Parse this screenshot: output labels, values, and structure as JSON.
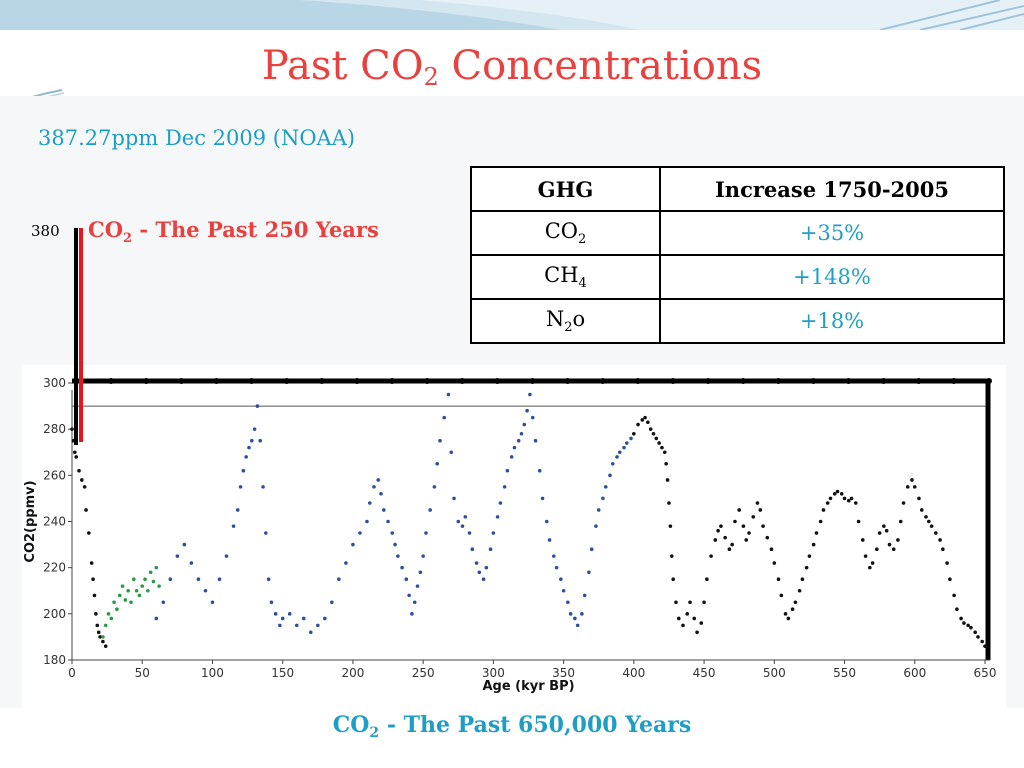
{
  "slide": {
    "title_main": "Past CO",
    "title_sub": "2",
    "title_rest": " Concentrations",
    "subtitle": "387.27ppm Dec 2009 (NOAA)",
    "caption_pre": "CO",
    "caption_sub": "2",
    "caption_post": " - The Past 650,000 Years",
    "small_chart_pre": "CO",
    "small_chart_sub": "2",
    "small_chart_post": " - The Past 250 Years",
    "small_chart_tick": "380"
  },
  "table": {
    "headers": [
      "GHG",
      "Increase 1750-2005"
    ],
    "rows": [
      {
        "gas": "CO",
        "gas_sub": "2",
        "increase": "+35%"
      },
      {
        "gas": "CH",
        "gas_sub": "4",
        "increase": "+148%"
      },
      {
        "gas": "N",
        "gas_sub": "2",
        "gas_post": "o",
        "increase": "+18%"
      }
    ]
  },
  "colors": {
    "title": "#e8413f",
    "accent": "#1e9ec4",
    "series_black": "#111111",
    "series_blue": "#2f4f9e",
    "series_green": "#2a9a4a",
    "recent_line": "#e8141e"
  },
  "chart_data": {
    "type": "scatter",
    "title": "",
    "xlabel": "Age (kyr BP)",
    "ylabel": "CO2(ppmv)",
    "xlim": [
      0,
      650
    ],
    "ylim": [
      180,
      300
    ],
    "xticks": [
      "0",
      "50",
      "100",
      "150",
      "200",
      "250",
      "300",
      "350",
      "400",
      "450",
      "500",
      "550",
      "600",
      "650"
    ],
    "yticks": [
      "180",
      "200",
      "220",
      "240",
      "260",
      "280",
      "300"
    ],
    "reference_line_y": 290,
    "grid": false,
    "series": [
      {
        "color": "black",
        "x": [
          0,
          1,
          2,
          3,
          5,
          7,
          9,
          10,
          12,
          14,
          15,
          16,
          17,
          18,
          19,
          20,
          22,
          24,
          400,
          403,
          406,
          408,
          410,
          412,
          414,
          416,
          418,
          420,
          422,
          423,
          424,
          425,
          426,
          427,
          428,
          430,
          432,
          435,
          438,
          440,
          443,
          445,
          448,
          450,
          452,
          455,
          458,
          460,
          462,
          465,
          468,
          470,
          472,
          475,
          478,
          480,
          482,
          485,
          488,
          490,
          492,
          495,
          498,
          500,
          503,
          505,
          508,
          510,
          513,
          515,
          518,
          520,
          523,
          525,
          528,
          530,
          533,
          535,
          538,
          540,
          543,
          545,
          548,
          550,
          553,
          555,
          558,
          560,
          563,
          565,
          568,
          570,
          573,
          575,
          578,
          580,
          582,
          585,
          588,
          590,
          592,
          595,
          598,
          600,
          603,
          605,
          608,
          610,
          612,
          615,
          618,
          620,
          623,
          625,
          628,
          630,
          633,
          635,
          638,
          640,
          643,
          645,
          648,
          650
        ],
        "y": [
          280,
          275,
          270,
          268,
          262,
          258,
          255,
          245,
          235,
          222,
          215,
          208,
          200,
          195,
          192,
          190,
          188,
          186,
          278,
          282,
          284,
          285,
          283,
          280,
          278,
          276,
          274,
          272,
          270,
          265,
          258,
          248,
          238,
          225,
          215,
          205,
          198,
          195,
          200,
          205,
          198,
          192,
          196,
          205,
          215,
          225,
          232,
          236,
          238,
          233,
          228,
          230,
          240,
          245,
          238,
          232,
          235,
          242,
          248,
          245,
          238,
          233,
          228,
          222,
          215,
          208,
          200,
          198,
          202,
          205,
          210,
          215,
          220,
          225,
          230,
          235,
          240,
          245,
          248,
          250,
          252,
          253,
          252,
          250,
          249,
          250,
          248,
          240,
          232,
          225,
          220,
          222,
          228,
          235,
          238,
          236,
          230,
          228,
          232,
          240,
          248,
          255,
          258,
          255,
          250,
          245,
          242,
          240,
          238,
          235,
          232,
          228,
          222,
          215,
          208,
          202,
          198,
          196,
          195,
          194,
          192,
          190,
          188,
          186
        ]
      },
      {
        "color": "blue",
        "x": [
          60,
          65,
          70,
          75,
          80,
          85,
          90,
          95,
          100,
          105,
          110,
          115,
          118,
          120,
          122,
          124,
          126,
          128,
          130,
          132,
          134,
          136,
          138,
          140,
          142,
          145,
          148,
          150,
          155,
          160,
          165,
          170,
          175,
          180,
          185,
          190,
          195,
          200,
          205,
          210,
          212,
          215,
          218,
          220,
          222,
          225,
          228,
          230,
          232,
          235,
          238,
          240,
          242,
          244,
          246,
          248,
          250,
          252,
          255,
          258,
          260,
          262,
          265,
          268,
          270,
          272,
          275,
          278,
          280,
          283,
          285,
          288,
          290,
          293,
          295,
          298,
          300,
          303,
          305,
          308,
          310,
          313,
          315,
          318,
          320,
          322,
          324,
          326,
          328,
          330,
          333,
          335,
          338,
          340,
          343,
          345,
          348,
          350,
          353,
          355,
          358,
          360,
          363,
          365,
          368,
          370,
          373,
          375,
          378,
          380,
          383,
          385,
          388,
          390,
          393,
          395,
          398
        ],
        "y": [
          198,
          205,
          215,
          225,
          230,
          222,
          215,
          210,
          205,
          215,
          225,
          238,
          245,
          255,
          262,
          268,
          272,
          275,
          280,
          290,
          275,
          255,
          235,
          215,
          205,
          200,
          195,
          198,
          200,
          195,
          198,
          192,
          195,
          198,
          205,
          215,
          222,
          230,
          235,
          240,
          248,
          255,
          258,
          252,
          245,
          240,
          235,
          230,
          225,
          220,
          215,
          208,
          200,
          205,
          212,
          218,
          225,
          235,
          245,
          255,
          265,
          275,
          285,
          295,
          270,
          250,
          240,
          238,
          242,
          235,
          228,
          222,
          218,
          215,
          220,
          228,
          235,
          242,
          248,
          255,
          262,
          268,
          272,
          275,
          278,
          282,
          288,
          295,
          285,
          275,
          262,
          250,
          240,
          232,
          225,
          220,
          215,
          210,
          205,
          200,
          198,
          195,
          200,
          208,
          218,
          228,
          238,
          245,
          250,
          255,
          260,
          265,
          268,
          270,
          272,
          274,
          276
        ]
      },
      {
        "color": "green",
        "x": [
          22,
          24,
          26,
          28,
          30,
          32,
          34,
          36,
          38,
          40,
          42,
          44,
          46,
          48,
          50,
          52,
          54,
          56,
          58,
          60,
          62
        ],
        "y": [
          190,
          195,
          200,
          198,
          205,
          202,
          208,
          212,
          206,
          210,
          205,
          215,
          210,
          208,
          212,
          215,
          210,
          218,
          214,
          220,
          212
        ]
      }
    ],
    "inset": {
      "label": "CO2 - The Past 250 Years",
      "tick": "380"
    }
  }
}
